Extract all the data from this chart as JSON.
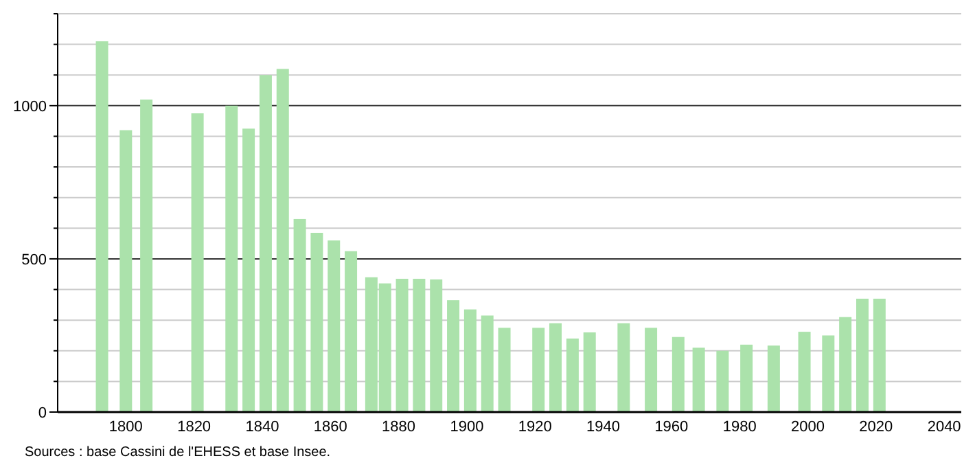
{
  "chart_data": {
    "type": "bar",
    "x": [
      1793,
      1800,
      1806,
      1821,
      1831,
      1836,
      1841,
      1846,
      1851,
      1856,
      1861,
      1866,
      1872,
      1876,
      1881,
      1886,
      1891,
      1896,
      1901,
      1906,
      1911,
      1921,
      1926,
      1931,
      1936,
      1946,
      1954,
      1962,
      1968,
      1975,
      1982,
      1990,
      1999,
      2006,
      2011,
      2016,
      2021
    ],
    "values": [
      1210,
      920,
      1020,
      975,
      1000,
      925,
      1100,
      1120,
      630,
      585,
      560,
      525,
      440,
      420,
      435,
      435,
      433,
      365,
      335,
      315,
      275,
      275,
      290,
      240,
      260,
      290,
      275,
      245,
      210,
      200,
      220,
      217,
      262,
      250,
      310,
      370,
      370
    ],
    "color": "#abe2ab",
    "xlim": [
      1780,
      2045
    ],
    "xticks": [
      1800,
      1820,
      1840,
      1860,
      1880,
      1900,
      1920,
      1940,
      1960,
      1980,
      2000,
      2020,
      2040
    ],
    "ylim": [
      0,
      1300
    ],
    "yticks": [
      0,
      {
        "value": 100,
        "label": null
      },
      {
        "value": 200,
        "label": null
      },
      {
        "value": 300,
        "label": null
      },
      {
        "value": 400,
        "label": null
      },
      500,
      {
        "value": 600,
        "label": null
      },
      {
        "value": 700,
        "label": null
      },
      {
        "value": 800,
        "label": null
      },
      {
        "value": 900,
        "label": null
      },
      1000,
      {
        "value": 1100,
        "label": null
      },
      {
        "value": 1200,
        "label": null
      },
      {
        "value": 1300,
        "label": null
      }
    ],
    "grid": "y",
    "annotations": [
      "Sources : base Cassini de l'EHESS et base Insee."
    ]
  }
}
